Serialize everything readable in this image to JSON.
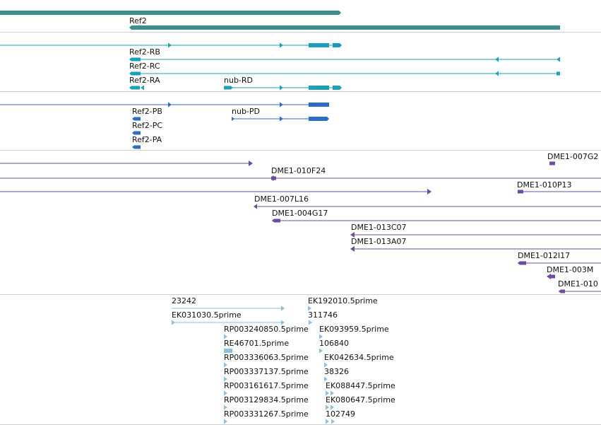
{
  "colors": {
    "gene": "#3d8f8f",
    "transcript_nub": "#19a0bd",
    "transcript_ref": "#2d6cc4",
    "clone": "#6a4ca3",
    "est": "#8cbfe0",
    "separator": "#cfcfcf",
    "label": "#111111"
  },
  "tracks": {
    "genes": {
      "labels": [
        "Ref2"
      ]
    },
    "transcripts_nub": {
      "labels": [
        "Ref2-RB",
        "Ref2-RC",
        "Ref2-RA",
        "nub-RD"
      ]
    },
    "transcripts_ref": {
      "labels": [
        "Ref2-PB",
        "nub-PD",
        "Ref2-PC",
        "Ref2-PA"
      ]
    },
    "clones": {
      "labels": [
        "DME1-007G2",
        "DME1-010F24",
        "DME1-010P13",
        "DME1-007L16",
        "DME1-004G17",
        "DME1-013C07",
        "DME1-013A07",
        "DME1-012I17",
        "DME1-003M",
        "DME1-010"
      ]
    },
    "ests": {
      "labels": [
        "23242",
        "EK192010.5prime",
        "EK031030.5prime",
        "311746",
        "RP003240850.5prime",
        "EK093959.5prime",
        "RE46701.5prime",
        "106840",
        "RP003336063.5prime",
        "EK042634.5prime",
        "RP003337137.5prime",
        "38326",
        "RP003161617.5prime",
        "EK088447.5prime",
        "RP003129834.5prime",
        "EK080647.5prime",
        "RP003331267.5prime",
        "102749"
      ]
    }
  }
}
